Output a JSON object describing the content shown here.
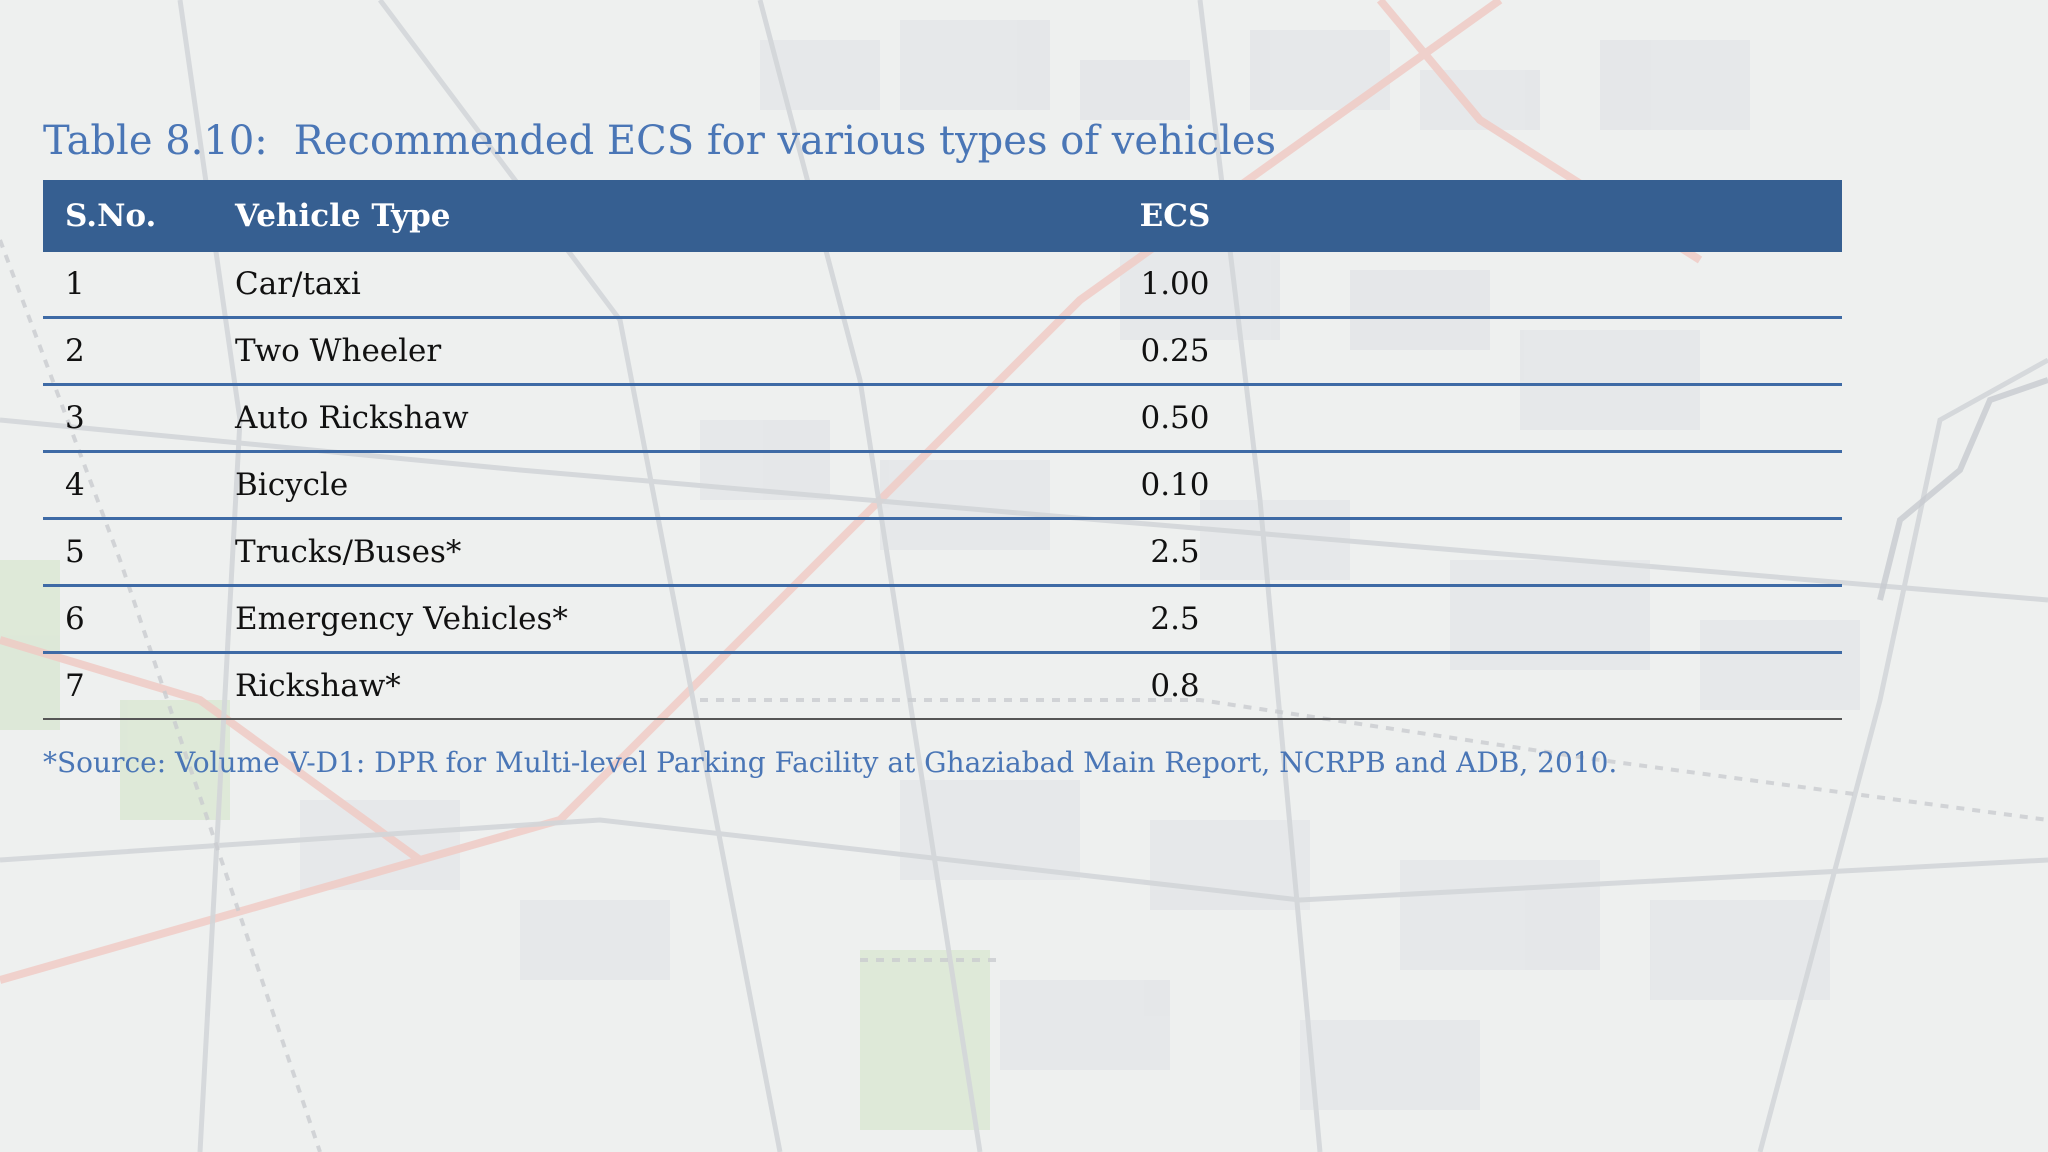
{
  "slide": {
    "title_label": "Table 8.10:",
    "title_text": "Recommended ECS for various types of vehicles",
    "footnote": "*Source: Volume V-D1: DPR for Multi-level Parking Facility at Ghaziabad Main Report, NCRPB and ADB, 2010."
  },
  "table": {
    "headers": [
      "S.No.",
      "Vehicle Type",
      "ECS"
    ],
    "rows": [
      {
        "sno": "1",
        "type": "Car/taxi",
        "ecs": "1.00"
      },
      {
        "sno": "2",
        "type": "Two Wheeler",
        "ecs": "0.25"
      },
      {
        "sno": "3",
        "type": "Auto Rickshaw",
        "ecs": "0.50"
      },
      {
        "sno": "4",
        "type": "Bicycle",
        "ecs": "0.10"
      },
      {
        "sno": "5",
        "type": "Trucks/Buses*",
        "ecs": "2.5"
      },
      {
        "sno": "6",
        "type": "Emergency Vehicles*",
        "ecs": "2.5"
      },
      {
        "sno": "7",
        "type": "Rickshaw*",
        "ecs": "0.8"
      }
    ]
  },
  "colors": {
    "header_bg": "#365f91",
    "title_blue": "#4a76b6",
    "row_rule": "#3e6aa5"
  }
}
